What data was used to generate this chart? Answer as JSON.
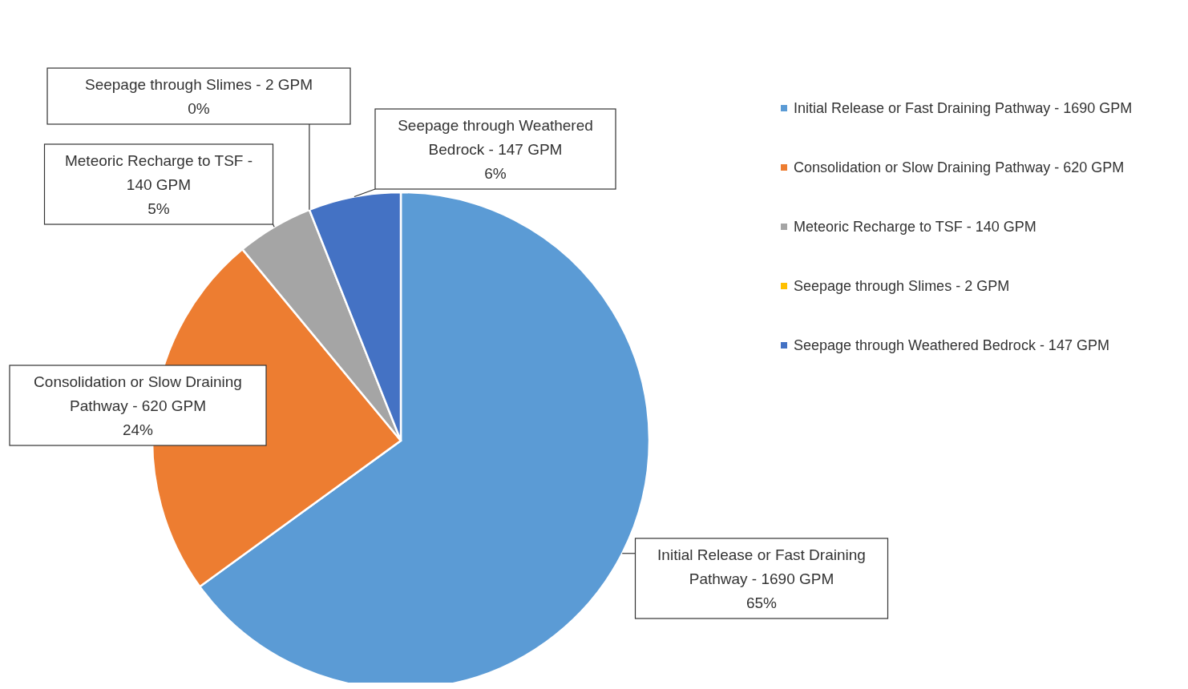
{
  "chart_data": {
    "type": "pie",
    "categories": [
      "Initial Release or Fast Draining Pathway - 1690 GPM",
      "Consolidation or Slow Draining Pathway - 620 GPM",
      "Meteoric Recharge to TSF - 140 GPM",
      "Seepage through Slimes - 2 GPM",
      "Seepage through Weathered Bedrock - 147 GPM"
    ],
    "values": [
      65,
      24,
      5,
      0,
      6
    ],
    "colors": [
      "#5b9bd5",
      "#ed7d31",
      "#a5a5a5",
      "#ffc000",
      "#4472c4"
    ],
    "value_labels": [
      "65%",
      "24%",
      "5%",
      "0%",
      "6%"
    ],
    "legend": "right"
  }
}
